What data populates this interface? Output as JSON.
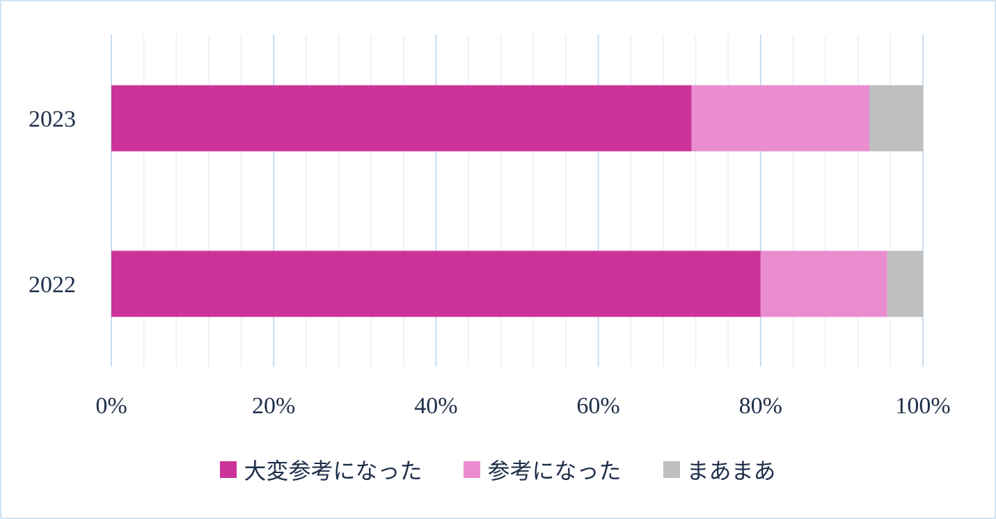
{
  "chart_data": {
    "type": "bar",
    "orientation": "horizontal",
    "stacked": "percent",
    "categories": [
      "2023",
      "2022"
    ],
    "series": [
      {
        "name": "大変参考になった",
        "color": "#cc3399",
        "values": [
          71.5,
          80.0
        ]
      },
      {
        "name": "参考になった",
        "color": "#ea8cd0",
        "values": [
          21.9,
          15.6
        ]
      },
      {
        "name": "まあまあ",
        "color": "#bfbfbf",
        "values": [
          6.6,
          4.4
        ]
      }
    ],
    "xlim": [
      0,
      100
    ],
    "xticks": [
      "0%",
      "20%",
      "40%",
      "60%",
      "80%",
      "100%"
    ],
    "grid": true,
    "legend_position": "bottom"
  }
}
